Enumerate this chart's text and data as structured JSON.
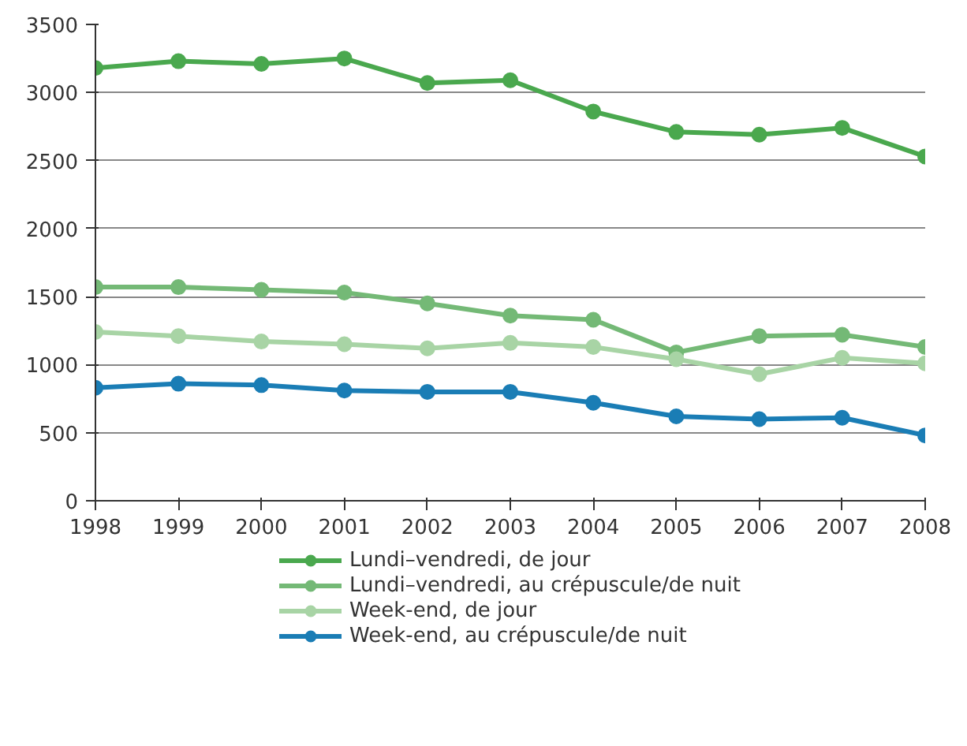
{
  "chart_data": {
    "type": "line",
    "x": [
      1998,
      1999,
      2000,
      2001,
      2002,
      2003,
      2004,
      2005,
      2006,
      2007,
      2008
    ],
    "series": [
      {
        "name": "Lundi–vendredi, de jour",
        "color": "#4aa84e",
        "values": [
          3180,
          3230,
          3210,
          3250,
          3070,
          3090,
          2860,
          2710,
          2690,
          2740,
          2530
        ]
      },
      {
        "name": "Lundi–vendredi, au crépuscule/de nuit",
        "color": "#74b976",
        "values": [
          1570,
          1570,
          1550,
          1530,
          1450,
          1360,
          1330,
          1090,
          1210,
          1220,
          1130
        ]
      },
      {
        "name": "Week-end, de jour",
        "color": "#a8d4a5",
        "values": [
          1240,
          1210,
          1170,
          1150,
          1120,
          1160,
          1130,
          1040,
          930,
          1050,
          1010
        ]
      },
      {
        "name": "Week-end, au crépuscule/de nuit",
        "color": "#1a7db5",
        "values": [
          830,
          860,
          850,
          810,
          800,
          800,
          720,
          620,
          600,
          610,
          480
        ]
      }
    ],
    "xlim": [
      1998,
      2008
    ],
    "xticks": [
      1998,
      1999,
      2000,
      2001,
      2002,
      2003,
      2004,
      2005,
      2006,
      2007,
      2008
    ],
    "ylim": [
      0,
      3500
    ],
    "yticks": [
      0,
      500,
      1000,
      1500,
      2000,
      2500,
      3000,
      3500
    ],
    "grid": "y",
    "legend": "bottom",
    "marker": "circle",
    "line_style": "solid"
  }
}
